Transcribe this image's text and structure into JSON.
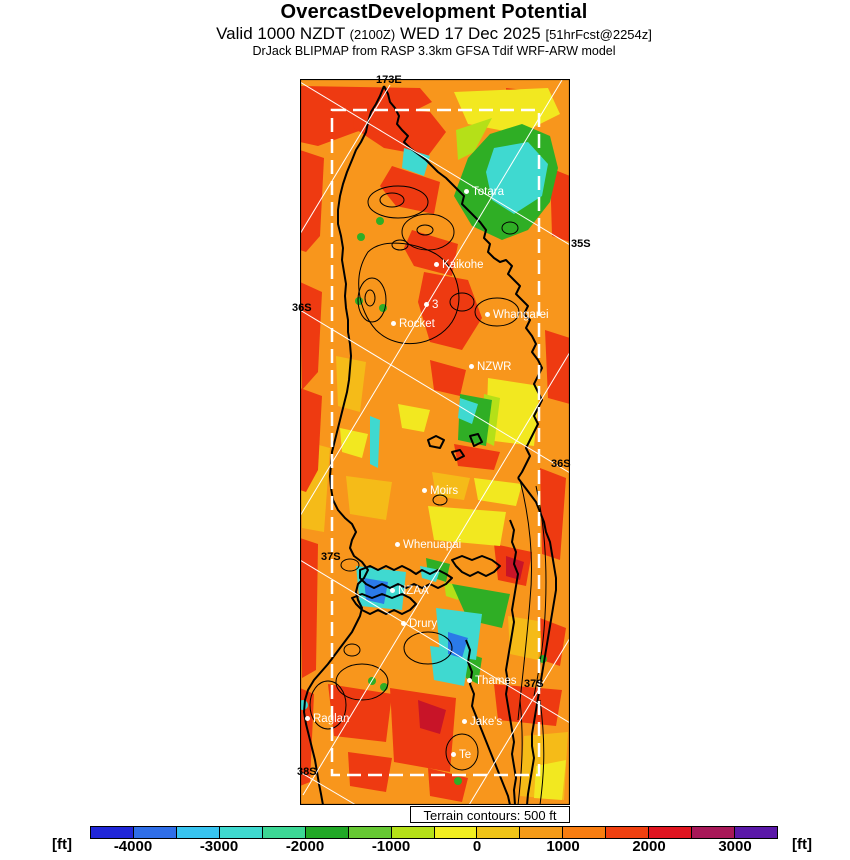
{
  "header": {
    "title": "OvercastDevelopment Potential",
    "valid_prefix": "Valid 1000 NZDT",
    "valid_zulu": "(2100Z)",
    "valid_date": "WED 17 Dec 2025",
    "valid_fcst": "[51hrFcst@2254z]",
    "model_line": "DrJack BLIPMAP from RASP 3.3km GFSA Tdif WRF-ARW model"
  },
  "map": {
    "terrain_note": "Terrain contours: 500 ft",
    "geo_labels": [
      {
        "text": "173E"
      },
      {
        "text": "35S"
      },
      {
        "text": "36S"
      },
      {
        "text": "36S"
      },
      {
        "text": "37S"
      },
      {
        "text": "37S"
      },
      {
        "text": "38S"
      }
    ],
    "sites": [
      {
        "label": "Totara"
      },
      {
        "label": "Kaikohe"
      },
      {
        "label": "3"
      },
      {
        "label": "Whangarei"
      },
      {
        "label": "Rocket"
      },
      {
        "label": "NZWR"
      },
      {
        "label": "Moirs"
      },
      {
        "label": "Whenuapai"
      },
      {
        "label": "NZAA"
      },
      {
        "label": "Drury"
      },
      {
        "label": "Thames"
      },
      {
        "label": "Jake's"
      },
      {
        "label": "Te"
      },
      {
        "label": "Raglan"
      }
    ]
  },
  "colors": {
    "base_orange": "#f8961c",
    "red": "#ee3a11",
    "dark_red": "#c81428",
    "amber": "#f5bb18",
    "yellow": "#f2e820",
    "yellow_green": "#b5e018",
    "green": "#2fae25",
    "cyan": "#3fd9d0",
    "blue": "#2b7ae8"
  },
  "colorbar": {
    "unit_left": "[ft]",
    "unit_right": "[ft]",
    "min": -4500,
    "max": 3500,
    "step": 500,
    "ticks": [
      "-4000",
      "-3000",
      "-2000",
      "-1000",
      "0",
      "1000",
      "2000",
      "3000"
    ],
    "segments": [
      {
        "from": -4500,
        "to": -4000,
        "color": "#2026d8"
      },
      {
        "from": -4000,
        "to": -3500,
        "color": "#2f6ee8"
      },
      {
        "from": -3500,
        "to": -3000,
        "color": "#38c4f0"
      },
      {
        "from": -3000,
        "to": -2500,
        "color": "#3fd9cf"
      },
      {
        "from": -2500,
        "to": -2000,
        "color": "#3cd795"
      },
      {
        "from": -2000,
        "to": -1500,
        "color": "#21a826"
      },
      {
        "from": -1500,
        "to": -1000,
        "color": "#66c832"
      },
      {
        "from": -1000,
        "to": -500,
        "color": "#b5e018"
      },
      {
        "from": -500,
        "to": 0,
        "color": "#f2ee20"
      },
      {
        "from": 0,
        "to": 500,
        "color": "#f0c418"
      },
      {
        "from": 500,
        "to": 1000,
        "color": "#f59b18"
      },
      {
        "from": 1000,
        "to": 1500,
        "color": "#f87d10"
      },
      {
        "from": 1500,
        "to": 2000,
        "color": "#f04010"
      },
      {
        "from": 2000,
        "to": 2500,
        "color": "#e01420"
      },
      {
        "from": 2500,
        "to": 3000,
        "color": "#a81858"
      },
      {
        "from": 3000,
        "to": 3500,
        "color": "#5a18a8"
      }
    ]
  }
}
